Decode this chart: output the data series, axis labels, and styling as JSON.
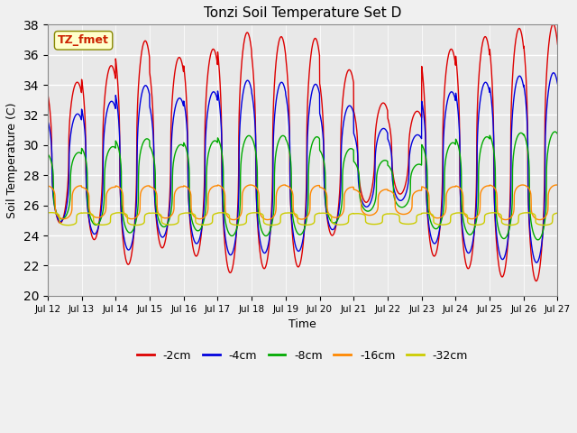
{
  "title": "Tonzi Soil Temperature Set D",
  "xlabel": "Time",
  "ylabel": "Soil Temperature (C)",
  "xlim": [
    0,
    15
  ],
  "ylim": [
    20,
    38
  ],
  "yticks": [
    20,
    22,
    24,
    26,
    28,
    30,
    32,
    34,
    36,
    38
  ],
  "xtick_labels": [
    "Jul 12",
    "Jul 13",
    "Jul 14",
    "Jul 15",
    "Jul 16",
    "Jul 17",
    "Jul 18",
    "Jul 19",
    "Jul 20",
    "Jul 21",
    "Jul 22",
    "Jul 23",
    "Jul 24",
    "Jul 25",
    "Jul 26",
    "Jul 27"
  ],
  "annotation_text": "TZ_fmet",
  "fig_facecolor": "#f0f0f0",
  "ax_facecolor": "#e8e8e8",
  "grid_color": "#ffffff",
  "series": [
    {
      "label": "-2cm",
      "color": "#dd0000"
    },
    {
      "label": "-4cm",
      "color": "#0000dd"
    },
    {
      "label": "-8cm",
      "color": "#00aa00"
    },
    {
      "label": "-16cm",
      "color": "#ff8800"
    },
    {
      "label": "-32cm",
      "color": "#cccc00"
    }
  ]
}
